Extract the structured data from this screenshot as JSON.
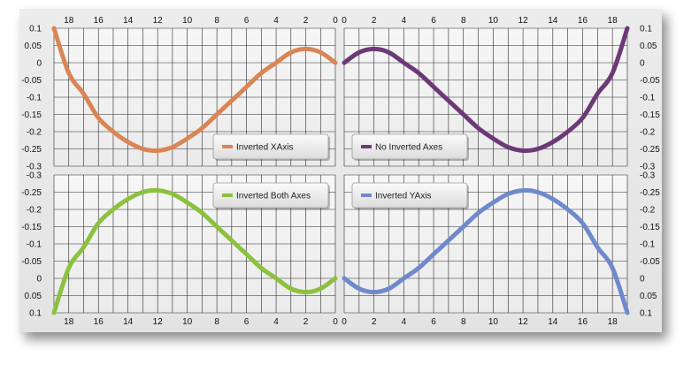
{
  "chart_data": [
    {
      "type": "line",
      "panel": "top-left",
      "legend": "Inverted XAxis",
      "color": "#D98556",
      "x_inverted": true,
      "y_inverted": false,
      "xlim": [
        0,
        19
      ],
      "ylim": [
        -0.3,
        0.1
      ],
      "x_ticks": [
        18,
        16,
        14,
        12,
        10,
        8,
        6,
        4,
        2,
        0
      ],
      "y_ticks": [
        "0.1",
        "0.05",
        "0",
        "-0.05",
        "-0.1",
        "-0.15",
        "-0.2",
        "-0.25",
        "-0.3"
      ],
      "legend_position": "bottom-right",
      "x": [
        0,
        1,
        2,
        3,
        4,
        5,
        6,
        7,
        8,
        9,
        10,
        11,
        12,
        13,
        14,
        15,
        16,
        17,
        18,
        19
      ],
      "y": [
        0.0,
        0.03,
        0.04,
        0.03,
        0.0,
        -0.03,
        -0.07,
        -0.11,
        -0.15,
        -0.19,
        -0.22,
        -0.245,
        -0.255,
        -0.25,
        -0.23,
        -0.2,
        -0.16,
        -0.09,
        -0.03,
        0.1
      ]
    },
    {
      "type": "line",
      "panel": "top-right",
      "legend": "No Inverted Axes",
      "color": "#6B3A76",
      "x_inverted": false,
      "y_inverted": false,
      "xlim": [
        0,
        19
      ],
      "ylim": [
        -0.3,
        0.1
      ],
      "x_ticks": [
        0,
        2,
        4,
        6,
        8,
        10,
        12,
        14,
        16,
        18
      ],
      "y_ticks": [
        "0.1",
        "0.05",
        "0",
        "-0.05",
        "-0.1",
        "-0.15",
        "-0.2",
        "-0.25",
        "-0.3"
      ],
      "legend_position": "bottom-left",
      "x": [
        0,
        1,
        2,
        3,
        4,
        5,
        6,
        7,
        8,
        9,
        10,
        11,
        12,
        13,
        14,
        15,
        16,
        17,
        18,
        19
      ],
      "y": [
        0.0,
        0.03,
        0.04,
        0.03,
        0.0,
        -0.03,
        -0.07,
        -0.11,
        -0.15,
        -0.19,
        -0.22,
        -0.245,
        -0.255,
        -0.25,
        -0.23,
        -0.2,
        -0.16,
        -0.09,
        -0.03,
        0.1
      ]
    },
    {
      "type": "line",
      "panel": "bottom-left",
      "legend": "Inverted Both Axes",
      "color": "#8CC13F",
      "x_inverted": true,
      "y_inverted": true,
      "xlim": [
        0,
        19
      ],
      "ylim": [
        -0.3,
        0.1
      ],
      "x_ticks": [
        18,
        16,
        14,
        12,
        10,
        8,
        6,
        4,
        2,
        0
      ],
      "y_ticks": [
        "-0.3",
        "-0.25",
        "-0.2",
        "-0.15",
        "-0.1",
        "-0.05",
        "0",
        "0.05",
        "0.1"
      ],
      "legend_position": "top-right",
      "x": [
        0,
        1,
        2,
        3,
        4,
        5,
        6,
        7,
        8,
        9,
        10,
        11,
        12,
        13,
        14,
        15,
        16,
        17,
        18,
        19
      ],
      "y": [
        0.0,
        0.03,
        0.04,
        0.03,
        0.0,
        -0.03,
        -0.07,
        -0.11,
        -0.15,
        -0.19,
        -0.22,
        -0.245,
        -0.255,
        -0.25,
        -0.23,
        -0.2,
        -0.16,
        -0.09,
        -0.03,
        0.1
      ]
    },
    {
      "type": "line",
      "panel": "bottom-right",
      "legend": "Inverted YAxis",
      "color": "#7089CC",
      "x_inverted": false,
      "y_inverted": true,
      "xlim": [
        0,
        19
      ],
      "ylim": [
        -0.3,
        0.1
      ],
      "x_ticks": [
        0,
        2,
        4,
        6,
        8,
        10,
        12,
        14,
        16,
        18
      ],
      "y_ticks": [
        "-0.3",
        "-0.25",
        "-0.2",
        "-0.15",
        "-0.1",
        "-0.05",
        "0",
        "0.05",
        "0.1"
      ],
      "legend_position": "top-left",
      "x": [
        0,
        1,
        2,
        3,
        4,
        5,
        6,
        7,
        8,
        9,
        10,
        11,
        12,
        13,
        14,
        15,
        16,
        17,
        18,
        19
      ],
      "y": [
        0.0,
        0.03,
        0.04,
        0.03,
        0.0,
        -0.03,
        -0.07,
        -0.11,
        -0.15,
        -0.19,
        -0.22,
        -0.245,
        -0.255,
        -0.25,
        -0.23,
        -0.2,
        -0.16,
        -0.09,
        -0.03,
        0.1
      ]
    }
  ]
}
